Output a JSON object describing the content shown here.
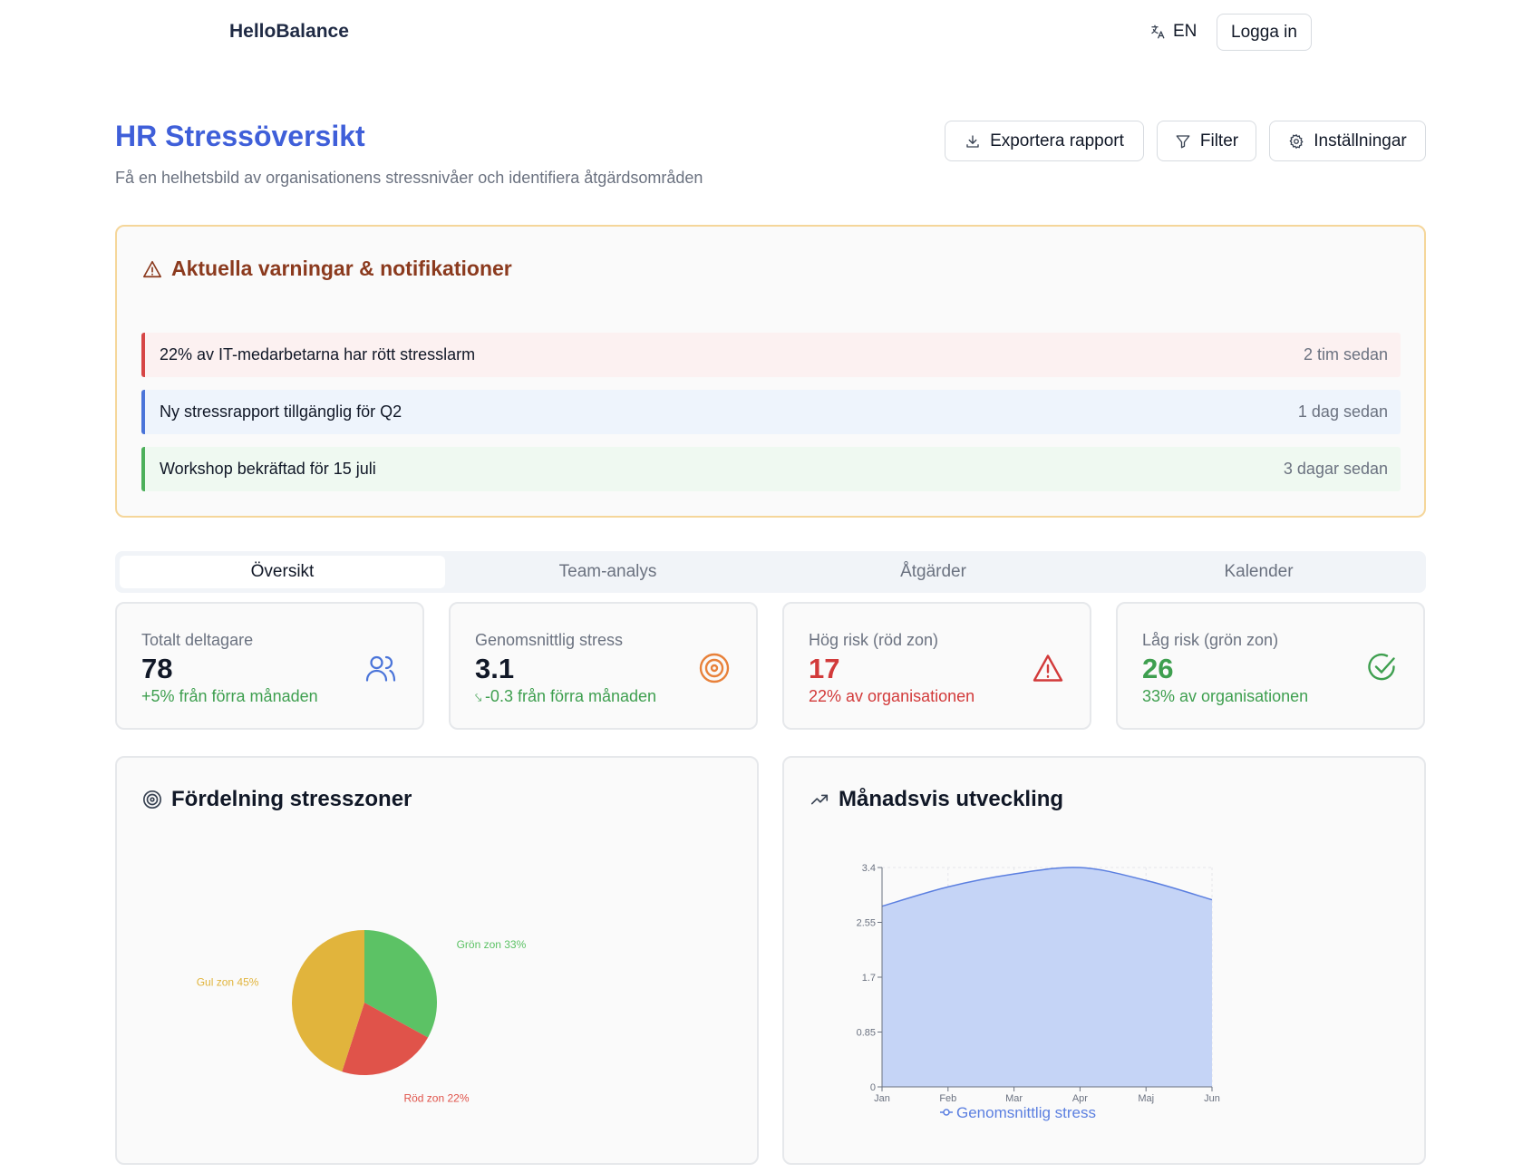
{
  "nav": {
    "brand": "HelloBalance",
    "lang": "EN",
    "login": "Logga in"
  },
  "header": {
    "title": "HR Stressöversikt",
    "subtitle": "Få en helhetsbild av organisationens stressnivåer och identifiera åtgärdsområden",
    "export": "Exportera rapport",
    "filter": "Filter",
    "settings": "Inställningar"
  },
  "alerts": {
    "title": "Aktuella varningar & notifikationer",
    "items": [
      {
        "message": "22% av IT-medarbetarna har rött stresslarm",
        "time": "2 tim sedan",
        "color": "#d64545"
      },
      {
        "message": "Ny stressrapport tillgänglig för Q2",
        "time": "1 dag sedan",
        "color": "#4a74d9"
      },
      {
        "message": "Workshop bekräftad för 15 juli",
        "time": "3 dagar sedan",
        "color": "#4caf5a"
      }
    ]
  },
  "tabs": [
    "Översikt",
    "Team-analys",
    "Åtgärder",
    "Kalender"
  ],
  "stats": [
    {
      "label": "Totalt deltagare",
      "value": "78",
      "sub": "+5% från förra månaden",
      "icon": "users-icon",
      "value_color": "#111827",
      "sub_color": "#3e9f4f"
    },
    {
      "label": "Genomsnittlig stress",
      "value": "3.1",
      "sub": "-0.3 från förra månaden",
      "icon": "target-icon",
      "value_color": "#111827",
      "sub_color": "#3e9f4f"
    },
    {
      "label": "Hög risk (röd zon)",
      "value": "17",
      "sub": "22% av organisationen",
      "icon": "alert-triangle-icon",
      "value_color": "#d23a3a",
      "sub_color": "#d23a3a"
    },
    {
      "label": "Låg risk (grön zon)",
      "value": "26",
      "sub": "33% av organisationen",
      "icon": "check-circle-icon",
      "value_color": "#3e9f4f",
      "sub_color": "#3e9f4f"
    }
  ],
  "pie_card": {
    "title": "Fördelning stresszoner"
  },
  "line_card": {
    "title": "Månadsvis utveckling"
  },
  "chart_data": [
    {
      "type": "pie",
      "labels": [
        "Grön zon",
        "Röd zon",
        "Gul zon"
      ],
      "values": [
        33,
        22,
        45
      ],
      "label_texts": [
        "Grön zon 33%",
        "Röd zon 22%",
        "Gul zon 45%"
      ],
      "colors": [
        "#5cc265",
        "#e0534a",
        "#e1b43c"
      ]
    },
    {
      "type": "area",
      "categories": [
        "Jan",
        "Feb",
        "Mar",
        "Apr",
        "Maj",
        "Jun"
      ],
      "series": [
        {
          "name": "Genomsnittlig stress",
          "values": [
            2.8,
            3.1,
            3.3,
            3.4,
            3.2,
            2.9
          ],
          "color": "#5b7fe0"
        }
      ],
      "ylim": [
        0,
        3.4
      ],
      "yticks": [
        "0",
        "0.85",
        "1.7",
        "2.55",
        "3.4"
      ]
    }
  ]
}
